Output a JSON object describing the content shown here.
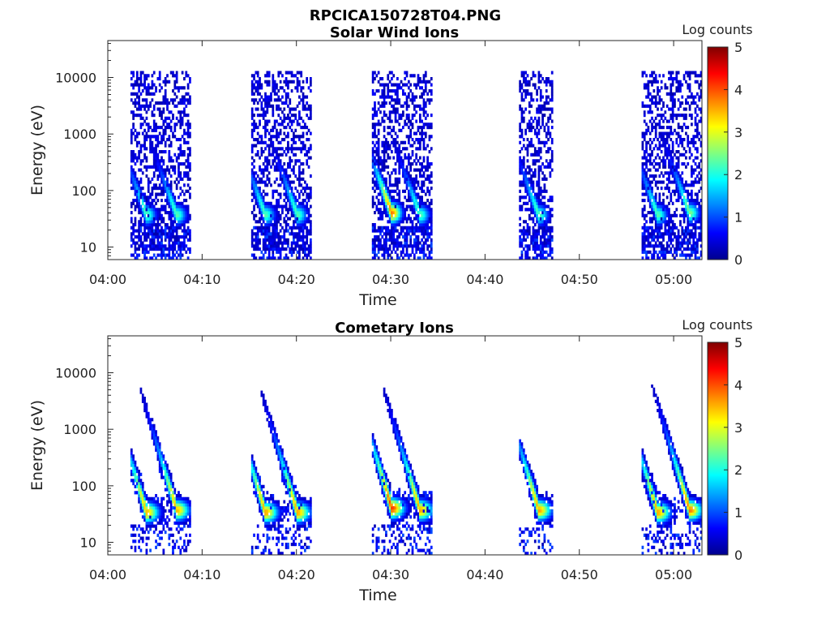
{
  "figure": {
    "title": "RPCICA150728T04.PNG"
  },
  "colorscale": [
    "#00008f",
    "#0000ff",
    "#0080ff",
    "#00ffff",
    "#80ff80",
    "#ffff00",
    "#ff8000",
    "#ff0000",
    "#800000"
  ],
  "chart_data": [
    {
      "type": "heatmap",
      "title": "Solar Wind Ions",
      "xlabel": "Time",
      "ylabel": "Energy (eV)",
      "xlim": [
        "04:00",
        "05:03"
      ],
      "ylim": [
        6,
        45000
      ],
      "yscale": "log",
      "xticks": [
        "04:00",
        "04:10",
        "04:20",
        "04:30",
        "04:40",
        "04:50",
        "05:00"
      ],
      "yticks": [
        "10",
        "100",
        "1000",
        "10000"
      ],
      "colorbar": {
        "label": "Log counts",
        "min": 0,
        "max": 5,
        "ticks": [
          "0",
          "1",
          "2",
          "3",
          "4",
          "5"
        ]
      },
      "bursts": [
        {
          "start": "04:02.4",
          "end": "04:08.6",
          "peaks": [
            {
              "time": "04:04.0",
              "energy_ev": 35,
              "log_counts": 2.3
            },
            {
              "time": "04:07.2",
              "energy_ev": 35,
              "log_counts": 2.3
            }
          ]
        },
        {
          "start": "04:15.2",
          "end": "04:21.4",
          "peaks": [
            {
              "time": "04:16.6",
              "energy_ev": 35,
              "log_counts": 2.3
            },
            {
              "time": "04:20.0",
              "energy_ev": 35,
              "log_counts": 2.3
            }
          ]
        },
        {
          "start": "04:28.0",
          "end": "04:34.2",
          "peaks": [
            {
              "time": "04:30.0",
              "energy_ev": 38,
              "log_counts": 3.8
            },
            {
              "time": "04:33.0",
              "energy_ev": 35,
              "log_counts": 2.3
            }
          ]
        },
        {
          "start": "04:43.6",
          "end": "04:47.0",
          "peaks": [
            {
              "time": "04:45.6",
              "energy_ev": 35,
              "log_counts": 2.3
            }
          ]
        },
        {
          "start": "04:56.6",
          "end": "05:02.8",
          "peaks": [
            {
              "time": "04:58.2",
              "energy_ev": 35,
              "log_counts": 2.3
            },
            {
              "time": "05:01.6",
              "energy_ev": 38,
              "log_counts": 2.5
            }
          ]
        }
      ]
    },
    {
      "type": "heatmap",
      "title": "Cometary Ions",
      "xlabel": "Time",
      "ylabel": "Energy (eV)",
      "xlim": [
        "04:00",
        "05:03"
      ],
      "ylim": [
        6,
        45000
      ],
      "yscale": "log",
      "xticks": [
        "04:00",
        "04:10",
        "04:20",
        "04:30",
        "04:40",
        "04:50",
        "05:00"
      ],
      "yticks": [
        "10",
        "100",
        "1000",
        "10000"
      ],
      "colorbar": {
        "label": "Log counts",
        "min": 0,
        "max": 5,
        "ticks": [
          "0",
          "1",
          "2",
          "3",
          "4",
          "5"
        ]
      },
      "bursts": [
        {
          "start": "04:02.4",
          "end": "04:08.6",
          "peaks": [
            {
              "time": "04:04.0",
              "energy_ev": 32,
              "log_counts": 3.5
            },
            {
              "time": "04:07.2",
              "energy_ev": 35,
              "log_counts": 3.5
            }
          ]
        },
        {
          "start": "04:15.2",
          "end": "04:21.4",
          "peaks": [
            {
              "time": "04:16.6",
              "energy_ev": 32,
              "log_counts": 3.6
            },
            {
              "time": "04:20.0",
              "energy_ev": 32,
              "log_counts": 3.6
            }
          ]
        },
        {
          "start": "04:28.0",
          "end": "04:34.2",
          "peaks": [
            {
              "time": "04:30.0",
              "energy_ev": 38,
              "log_counts": 4.1
            },
            {
              "time": "04:33.0",
              "energy_ev": 35,
              "log_counts": 3.6
            }
          ]
        },
        {
          "start": "04:43.6",
          "end": "04:47.0",
          "peaks": [
            {
              "time": "04:45.6",
              "energy_ev": 35,
              "log_counts": 3.6
            }
          ]
        },
        {
          "start": "04:56.6",
          "end": "05:02.8",
          "peaks": [
            {
              "time": "04:58.2",
              "energy_ev": 32,
              "log_counts": 3.6
            },
            {
              "time": "05:01.6",
              "energy_ev": 35,
              "log_counts": 3.8
            }
          ]
        }
      ]
    }
  ]
}
